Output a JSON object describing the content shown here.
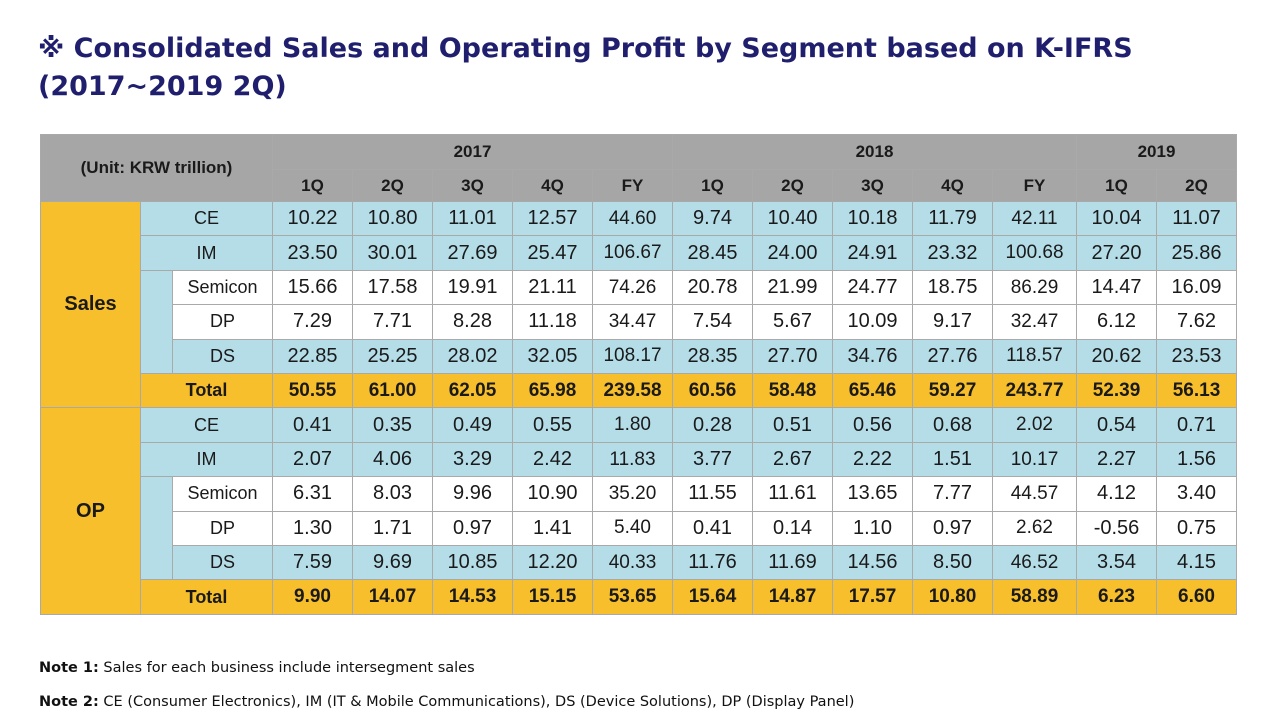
{
  "title": "※ Consolidated Sales and Operating Profit by Segment based on K-IFRS (2017~2019 2Q)",
  "unit_label": "(Unit: KRW trillion)",
  "years": [
    "2017",
    "2018",
    "2019"
  ],
  "quarters": [
    "1Q",
    "2Q",
    "3Q",
    "4Q",
    "FY",
    "1Q",
    "2Q",
    "3Q",
    "4Q",
    "FY",
    "1Q",
    "2Q"
  ],
  "groups": {
    "sales": {
      "label": "Sales",
      "rows": [
        {
          "label": "CE",
          "values": [
            "10.22",
            "10.80",
            "11.01",
            "12.57",
            "44.60",
            "9.74",
            "10.40",
            "10.18",
            "11.79",
            "42.11",
            "10.04",
            "11.07"
          ]
        },
        {
          "label": "IM",
          "values": [
            "23.50",
            "30.01",
            "27.69",
            "25.47",
            "106.67",
            "28.45",
            "24.00",
            "24.91",
            "23.32",
            "100.68",
            "27.20",
            "25.86"
          ]
        },
        {
          "label": "Semicon",
          "values": [
            "15.66",
            "17.58",
            "19.91",
            "21.11",
            "74.26",
            "20.78",
            "21.99",
            "24.77",
            "18.75",
            "86.29",
            "14.47",
            "16.09"
          ]
        },
        {
          "label": "DP",
          "values": [
            "7.29",
            "7.71",
            "8.28",
            "11.18",
            "34.47",
            "7.54",
            "5.67",
            "10.09",
            "9.17",
            "32.47",
            "6.12",
            "7.62"
          ]
        },
        {
          "label": "DS",
          "values": [
            "22.85",
            "25.25",
            "28.02",
            "32.05",
            "108.17",
            "28.35",
            "27.70",
            "34.76",
            "27.76",
            "118.57",
            "20.62",
            "23.53"
          ]
        },
        {
          "label": "Total",
          "values": [
            "50.55",
            "61.00",
            "62.05",
            "65.98",
            "239.58",
            "60.56",
            "58.48",
            "65.46",
            "59.27",
            "243.77",
            "52.39",
            "56.13"
          ]
        }
      ]
    },
    "op": {
      "label": "OP",
      "rows": [
        {
          "label": "CE",
          "values": [
            "0.41",
            "0.35",
            "0.49",
            "0.55",
            "1.80",
            "0.28",
            "0.51",
            "0.56",
            "0.68",
            "2.02",
            "0.54",
            "0.71"
          ]
        },
        {
          "label": "IM",
          "values": [
            "2.07",
            "4.06",
            "3.29",
            "2.42",
            "11.83",
            "3.77",
            "2.67",
            "2.22",
            "1.51",
            "10.17",
            "2.27",
            "1.56"
          ]
        },
        {
          "label": "Semicon",
          "values": [
            "6.31",
            "8.03",
            "9.96",
            "10.90",
            "35.20",
            "11.55",
            "11.61",
            "13.65",
            "7.77",
            "44.57",
            "4.12",
            "3.40"
          ]
        },
        {
          "label": "DP",
          "values": [
            "1.30",
            "1.71",
            "0.97",
            "1.41",
            "5.40",
            "0.41",
            "0.14",
            "1.10",
            "0.97",
            "2.62",
            "-0.56",
            "0.75"
          ]
        },
        {
          "label": "DS",
          "values": [
            "7.59",
            "9.69",
            "10.85",
            "12.20",
            "40.33",
            "11.76",
            "11.69",
            "14.56",
            "8.50",
            "46.52",
            "3.54",
            "4.15"
          ]
        },
        {
          "label": "Total",
          "values": [
            "9.90",
            "14.07",
            "14.53",
            "15.15",
            "53.65",
            "15.64",
            "14.87",
            "17.57",
            "10.80",
            "58.89",
            "6.23",
            "6.60"
          ]
        }
      ]
    }
  },
  "notes": [
    {
      "label": "Note 1:",
      "text": "Sales for each business include intersegment sales"
    },
    {
      "label": "Note 2:",
      "text": "CE (Consumer Electronics), IM (IT & Mobile Communications), DS (Device Solutions), DP (Display Panel)"
    }
  ],
  "colors": {
    "title": "#1f1f6e",
    "header_gray": "#a6a6a6",
    "group_orange": "#f8bf2c",
    "row_blue": "#b4dde8",
    "border": "#a9a9a9"
  }
}
